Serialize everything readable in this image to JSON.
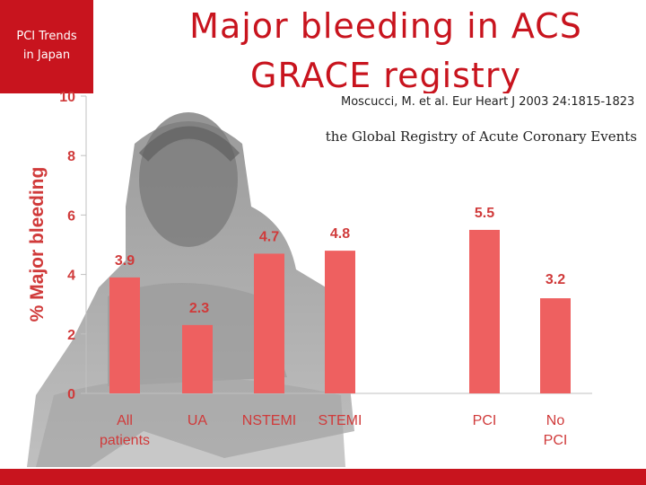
{
  "badge": {
    "line1": "PCI Trends",
    "line2": "in Japan"
  },
  "title": {
    "line1": "Major bleeding in ACS",
    "line2": "GRACE registry"
  },
  "citation": "Moscucci, M. et al. Eur Heart J 2003 24:1815-1823",
  "subtitle": "the Global Registry of Acute Coronary Events",
  "colors": {
    "accent": "#c8141e",
    "bar": "#ee6060",
    "label": "#d03a3a"
  },
  "chart_data": {
    "type": "bar",
    "title": "",
    "xlabel": "",
    "ylabel": "% Major bleeding",
    "ylim": [
      0,
      10
    ],
    "yticks": [
      0,
      2,
      4,
      6,
      8,
      10
    ],
    "grid": false,
    "categories": [
      "All patients",
      "UA",
      "NSTEMI",
      "STEMI",
      "PCI",
      "No PCI"
    ],
    "values": [
      3.9,
      2.3,
      4.7,
      4.8,
      5.5,
      3.2
    ],
    "value_labels": [
      "3.9",
      "2.3",
      "4.7",
      "4.8",
      "5.5",
      "3.2"
    ]
  }
}
